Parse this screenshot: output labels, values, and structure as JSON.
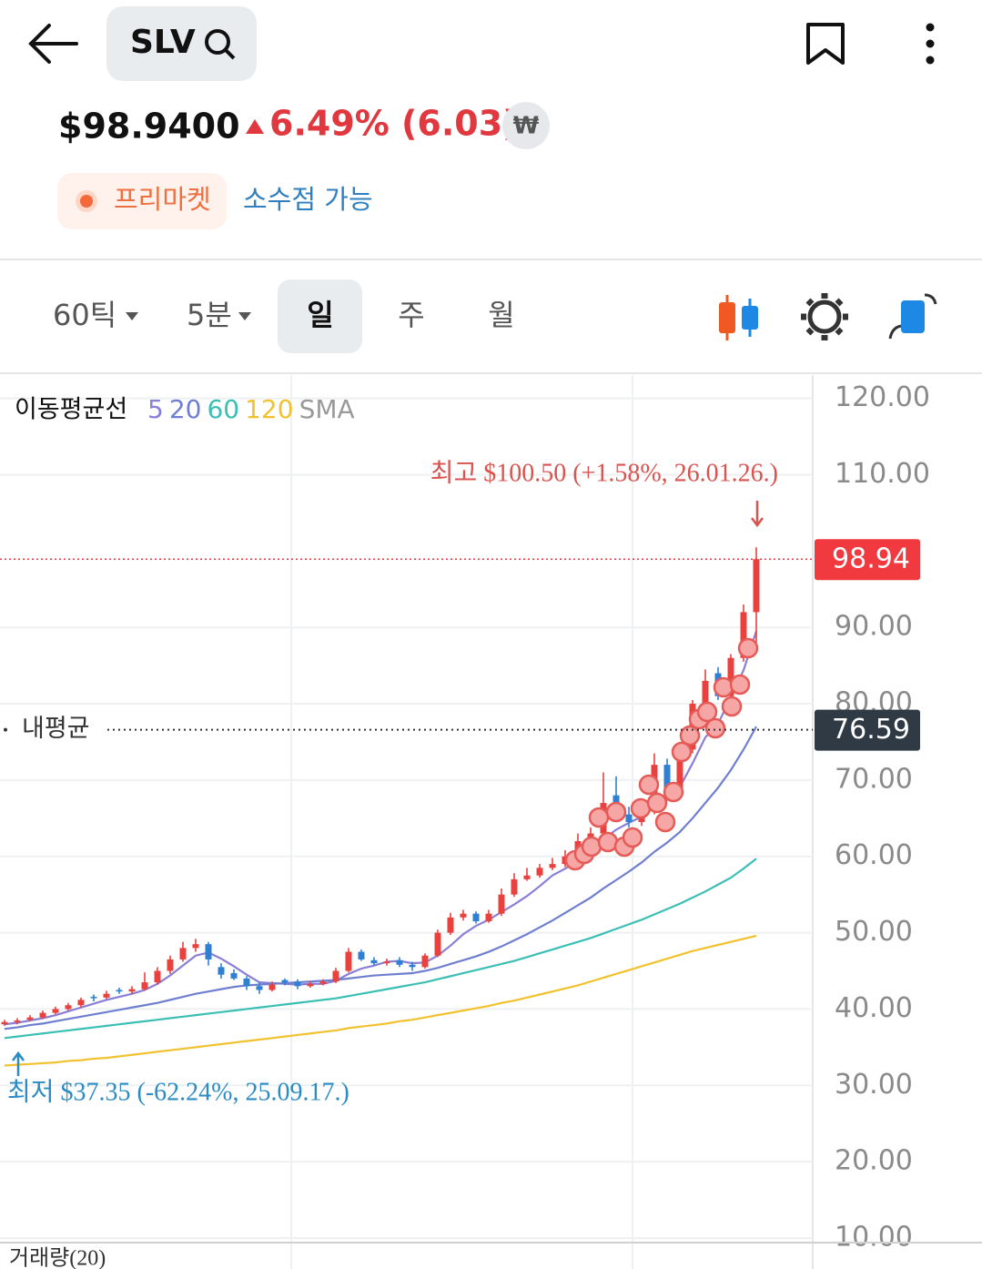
{
  "header": {
    "symbol": "SLV",
    "price": "$98.9400",
    "change": "6.49% (6.03)",
    "currency_badge": "₩",
    "session": "프리마켓",
    "fractional": "소수점 가능"
  },
  "tabs": [
    "60틱",
    "5분",
    "일",
    "주",
    "월"
  ],
  "selected_tab": 2,
  "chart_data": {
    "type": "candlestick",
    "ma_title": "이동평균선",
    "ma_kind": "SMA",
    "up_color": "#e8413e",
    "down_color": "#2f80d1",
    "candles": [
      [
        38.0,
        38.6,
        37.8,
        38.3
      ],
      [
        38.3,
        38.8,
        38.0,
        38.5
      ],
      [
        38.6,
        39.2,
        38.4,
        38.9
      ],
      [
        38.9,
        39.8,
        38.7,
        39.5
      ],
      [
        39.5,
        40.3,
        39.3,
        40.0
      ],
      [
        40.0,
        40.8,
        39.8,
        40.5
      ],
      [
        40.5,
        41.5,
        40.2,
        41.2
      ],
      [
        41.6,
        41.9,
        41.0,
        41.5
      ],
      [
        41.5,
        42.4,
        41.3,
        42.0
      ],
      [
        42.5,
        42.8,
        42.0,
        42.3
      ],
      [
        42.3,
        43.0,
        42.0,
        42.6
      ],
      [
        42.6,
        44.8,
        42.4,
        43.5
      ],
      [
        43.5,
        45.5,
        43.2,
        45.0
      ],
      [
        45.0,
        47.0,
        44.6,
        46.5
      ],
      [
        46.5,
        48.8,
        46.2,
        48.0
      ],
      [
        48.0,
        49.2,
        47.5,
        48.5
      ],
      [
        48.5,
        48.8,
        45.7,
        46.5
      ],
      [
        45.5,
        46.0,
        44.0,
        44.5
      ],
      [
        44.7,
        45.2,
        43.8,
        44.0
      ],
      [
        44.0,
        44.3,
        42.5,
        43.0
      ],
      [
        43.0,
        43.5,
        42.0,
        42.5
      ],
      [
        42.5,
        43.6,
        42.3,
        43.2
      ],
      [
        43.8,
        44.0,
        43.1,
        43.5
      ],
      [
        43.6,
        43.9,
        42.6,
        43.0
      ],
      [
        43.0,
        43.6,
        42.8,
        43.3
      ],
      [
        43.3,
        43.9,
        43.1,
        43.6
      ],
      [
        43.6,
        45.4,
        43.4,
        45.0
      ],
      [
        45.0,
        48.0,
        44.8,
        47.5
      ],
      [
        47.5,
        47.8,
        46.3,
        46.5
      ],
      [
        46.4,
        46.8,
        45.7,
        46.0
      ],
      [
        46.0,
        46.6,
        45.7,
        46.2
      ],
      [
        46.4,
        46.8,
        45.5,
        45.8
      ],
      [
        45.8,
        46.2,
        45.0,
        45.5
      ],
      [
        45.5,
        47.3,
        45.3,
        47.0
      ],
      [
        47.0,
        50.4,
        46.8,
        50.0
      ],
      [
        50.0,
        52.6,
        49.7,
        52.0
      ],
      [
        52.0,
        53.0,
        51.6,
        52.5
      ],
      [
        52.5,
        52.8,
        51.2,
        51.5
      ],
      [
        51.5,
        53.0,
        51.3,
        52.5
      ],
      [
        52.5,
        55.8,
        52.2,
        55.0
      ],
      [
        55.0,
        57.8,
        54.7,
        57.0
      ],
      [
        57.0,
        58.5,
        56.8,
        57.5
      ],
      [
        57.5,
        59.0,
        57.2,
        58.5
      ],
      [
        58.5,
        59.8,
        58.2,
        59.0
      ],
      [
        59.0,
        60.8,
        58.6,
        60.0
      ],
      [
        60.0,
        63.0,
        59.5,
        62.0
      ],
      [
        62.0,
        63.8,
        61.2,
        63.0
      ],
      [
        63.0,
        71.0,
        62.5,
        67.0
      ],
      [
        68.0,
        70.5,
        64.5,
        65.5
      ],
      [
        65.5,
        66.5,
        63.8,
        64.5
      ],
      [
        64.5,
        67.0,
        64.0,
        66.0
      ],
      [
        66.0,
        73.5,
        65.5,
        72.0
      ],
      [
        72.0,
        72.8,
        68.0,
        69.0
      ],
      [
        69.0,
        74.8,
        68.5,
        74.0
      ],
      [
        74.0,
        80.5,
        73.5,
        80.0
      ],
      [
        80.0,
        84.5,
        79.5,
        83.0
      ],
      [
        84.0,
        84.8,
        80.5,
        81.0
      ],
      [
        81.0,
        86.5,
        80.6,
        86.0
      ],
      [
        86.0,
        93.0,
        85.5,
        92.0
      ],
      [
        92.0,
        100.5,
        88.0,
        98.94
      ]
    ],
    "series": [
      {
        "name": "5",
        "color": "#8a7fd6",
        "values": [
          38.0,
          38.2,
          38.5,
          38.8,
          39.2,
          39.7,
          40.2,
          40.7,
          41.2,
          41.6,
          42.0,
          42.5,
          43.3,
          44.4,
          45.7,
          47.0,
          47.4,
          46.6,
          45.6,
          44.5,
          43.5,
          43.4,
          43.3,
          43.2,
          43.3,
          43.3,
          43.7,
          44.6,
          45.3,
          45.7,
          46.2,
          46.3,
          46.0,
          46.1,
          47.0,
          48.3,
          49.8,
          50.9,
          51.7,
          52.7,
          53.7,
          54.8,
          56.1,
          57.5,
          58.4,
          59.4,
          60.5,
          62.2,
          63.5,
          64.4,
          65.2,
          67.0,
          67.4,
          69.1,
          72.2,
          75.6,
          77.4,
          80.8,
          84.4,
          89.5
        ]
      },
      {
        "name": "20",
        "color": "#6f7fd0",
        "values": [
          37.4,
          37.6,
          37.9,
          38.1,
          38.4,
          38.7,
          39.0,
          39.3,
          39.6,
          39.9,
          40.2,
          40.5,
          40.8,
          41.2,
          41.6,
          42.0,
          42.3,
          42.6,
          42.9,
          43.1,
          43.2,
          43.3,
          43.4,
          43.5,
          43.6,
          43.7,
          43.8,
          44.0,
          44.2,
          44.4,
          44.5,
          44.6,
          44.7,
          45.0,
          45.4,
          45.9,
          46.4,
          46.9,
          47.5,
          48.2,
          49.0,
          49.8,
          50.7,
          51.6,
          52.6,
          53.6,
          54.6,
          55.8,
          56.9,
          58.0,
          59.2,
          60.6,
          61.8,
          63.2,
          65.0,
          67.0,
          69.0,
          71.3,
          74.0,
          77.0
        ]
      },
      {
        "name": "60",
        "color": "#3bbfb5",
        "values": [
          36.2,
          36.4,
          36.6,
          36.8,
          37.0,
          37.2,
          37.4,
          37.6,
          37.8,
          38.0,
          38.2,
          38.4,
          38.6,
          38.8,
          39.0,
          39.2,
          39.4,
          39.6,
          39.8,
          40.0,
          40.2,
          40.4,
          40.6,
          40.8,
          41.0,
          41.2,
          41.4,
          41.7,
          42.0,
          42.3,
          42.6,
          42.9,
          43.2,
          43.5,
          43.9,
          44.3,
          44.7,
          45.1,
          45.5,
          45.9,
          46.3,
          46.8,
          47.3,
          47.8,
          48.3,
          48.8,
          49.3,
          49.9,
          50.5,
          51.1,
          51.7,
          52.4,
          53.1,
          53.8,
          54.6,
          55.4,
          56.3,
          57.2,
          58.4,
          59.7
        ]
      },
      {
        "name": "120",
        "color": "#f2c12e",
        "values": [
          32.6,
          32.7,
          32.8,
          32.9,
          33.0,
          33.2,
          33.3,
          33.5,
          33.6,
          33.8,
          34.0,
          34.2,
          34.4,
          34.6,
          34.8,
          35.0,
          35.2,
          35.4,
          35.6,
          35.8,
          36.0,
          36.2,
          36.4,
          36.6,
          36.8,
          37.0,
          37.2,
          37.5,
          37.7,
          37.9,
          38.1,
          38.4,
          38.6,
          38.9,
          39.2,
          39.5,
          39.8,
          40.1,
          40.4,
          40.8,
          41.1,
          41.5,
          41.9,
          42.3,
          42.7,
          43.1,
          43.6,
          44.1,
          44.6,
          45.1,
          45.6,
          46.1,
          46.6,
          47.1,
          47.6,
          48.0,
          48.4,
          48.8,
          49.2,
          49.6
        ]
      }
    ],
    "ylim": [
      9.4,
      123.3
    ],
    "yticks": [
      {
        "value": 120,
        "label": "120.00"
      },
      {
        "value": 110,
        "label": "110.00"
      },
      {
        "value": 90,
        "label": "90.00"
      },
      {
        "value": 80,
        "label": "80.00"
      },
      {
        "value": 70,
        "label": "70.00"
      },
      {
        "value": 60,
        "label": "60.00"
      },
      {
        "value": 50,
        "label": "50.00"
      },
      {
        "value": 40,
        "label": "40.00"
      },
      {
        "value": 30,
        "label": "30.00"
      },
      {
        "value": 20,
        "label": "20.00"
      },
      {
        "value": 10,
        "label": "10.00"
      }
    ],
    "grid": true,
    "current_price": 98.94,
    "current_color": "#f03a3f",
    "average_price": 76.59,
    "average_color": "#2f3a45",
    "average_label": "내평균",
    "high_annotation": "최고 $100.50 (+1.58%, 26.01.26.)",
    "low_annotation": "최저 $37.35 (-62.24%, 25.09.17.)",
    "volume_label": "거래량(20)"
  }
}
